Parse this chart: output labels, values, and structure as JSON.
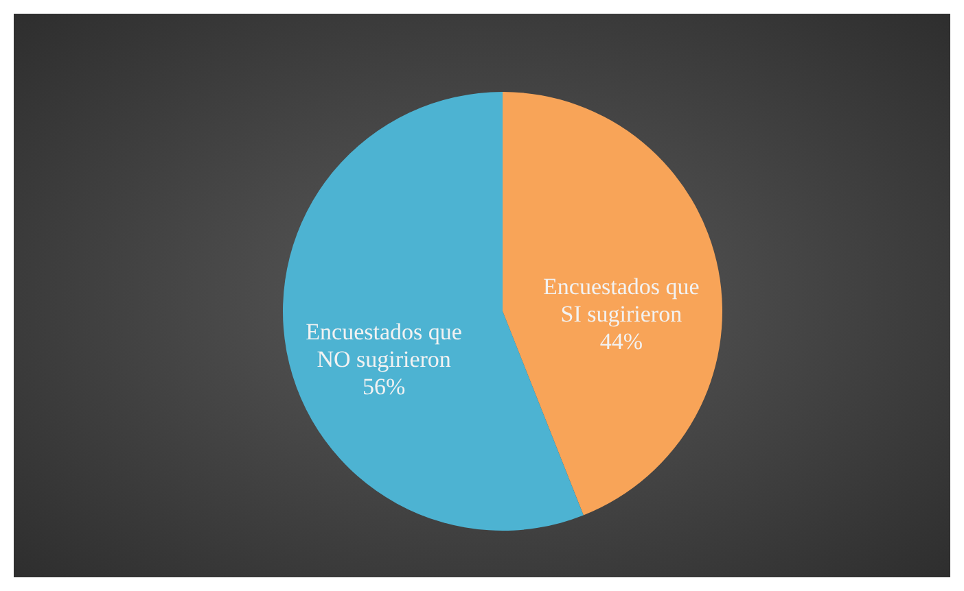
{
  "chart_data": {
    "type": "pie",
    "categories": [
      "Encuestados que SI sugirieron",
      "Encuestados que NO sugirieron"
    ],
    "values": [
      44,
      56
    ],
    "colors": [
      "#f8a458",
      "#4db3d2"
    ],
    "value_labels": [
      "44%",
      "56%"
    ],
    "legend": false
  }
}
